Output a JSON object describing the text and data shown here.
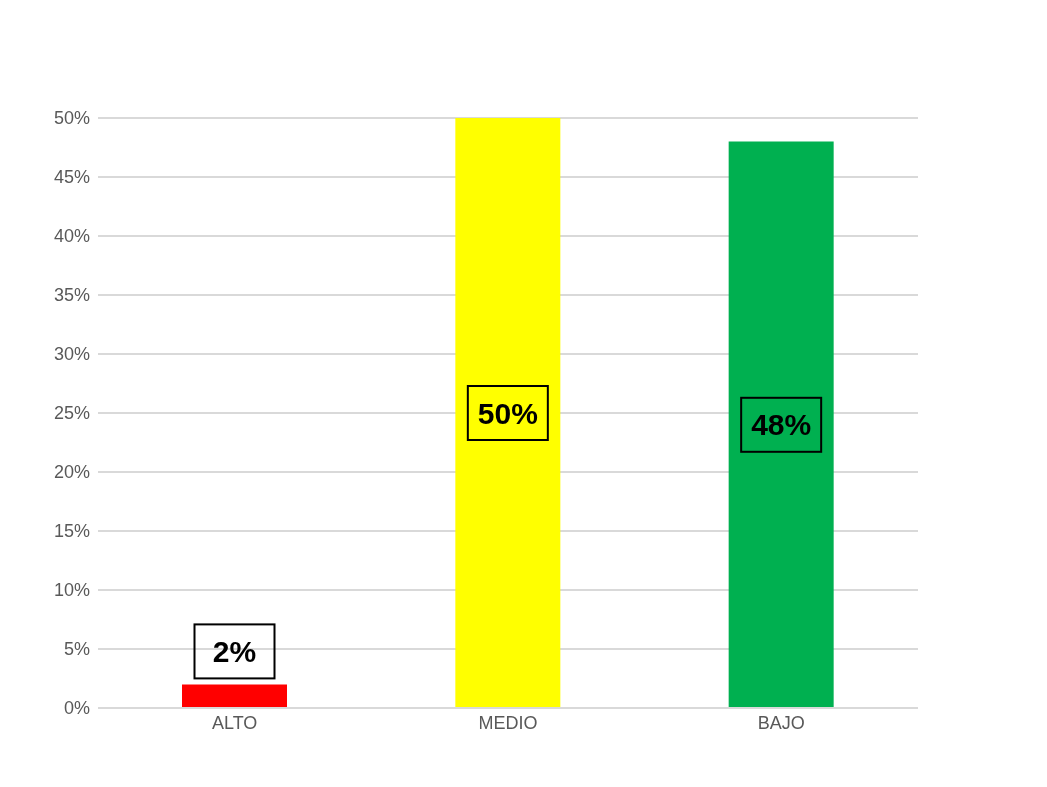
{
  "chart_data": {
    "type": "bar",
    "categories": [
      "ALTO",
      "MEDIO",
      "BAJO"
    ],
    "values": [
      2,
      50,
      48
    ],
    "colors": [
      "#ff0000",
      "#ffff00",
      "#00b050"
    ],
    "value_labels": [
      "2%",
      "50%",
      "48%"
    ],
    "ylim": [
      0,
      50
    ],
    "yticks": [
      {
        "value": 0,
        "label": "0%"
      },
      {
        "value": 5,
        "label": "5%"
      },
      {
        "value": 10,
        "label": "10%"
      },
      {
        "value": 15,
        "label": "15%"
      },
      {
        "value": 20,
        "label": "20%"
      },
      {
        "value": 25,
        "label": "25%"
      },
      {
        "value": 30,
        "label": "30%"
      },
      {
        "value": 35,
        "label": "35%"
      },
      {
        "value": 40,
        "label": "40%"
      },
      {
        "value": 45,
        "label": "45%"
      },
      {
        "value": 50,
        "label": "50%"
      }
    ],
    "grid": "y"
  }
}
